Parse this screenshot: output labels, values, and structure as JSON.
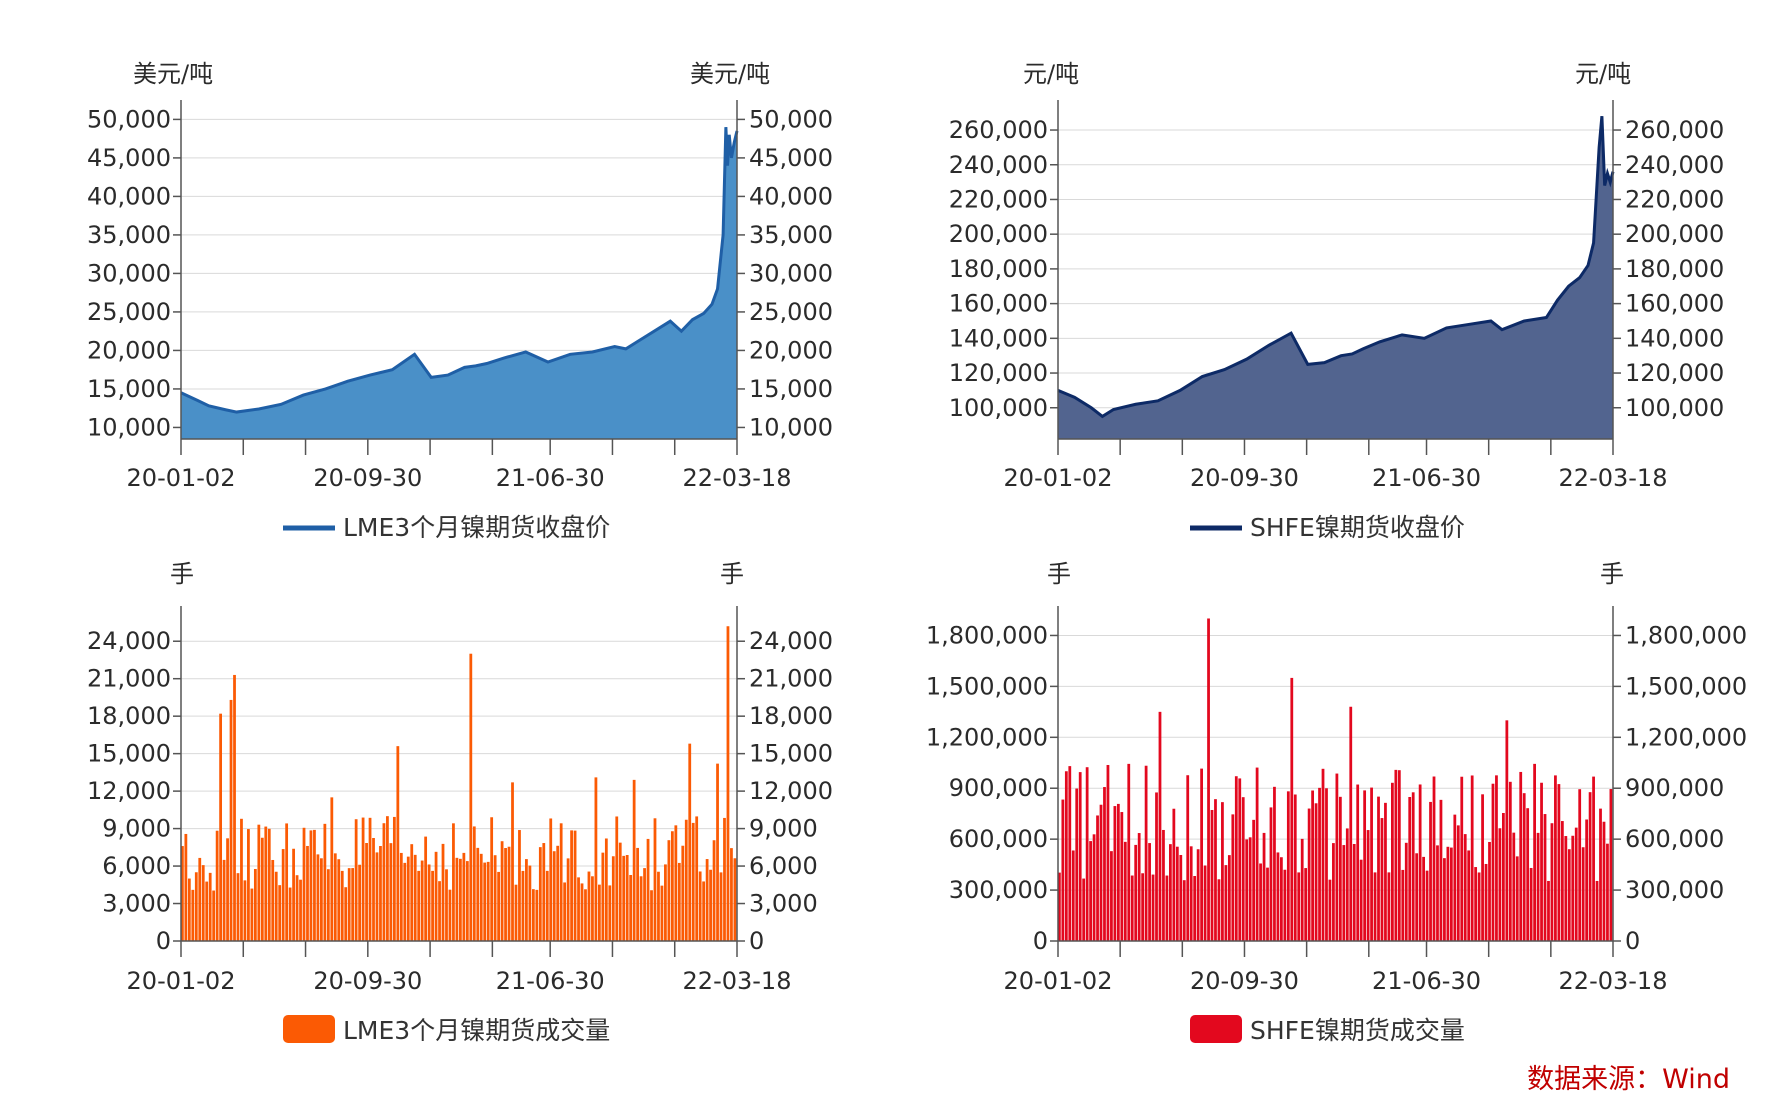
{
  "source_note": "数据来源：Wind",
  "chart_data": [
    {
      "id": "lme-price",
      "type": "area",
      "color": "#1f5fa6",
      "fill": "#4a90c8",
      "unit_left": "美元/吨",
      "unit_right": "美元/吨",
      "legend": "LME3个月镍期货收盘价",
      "legend_style": "line",
      "ylim": [
        8500,
        52000
      ],
      "yticks": [
        10000,
        15000,
        20000,
        25000,
        30000,
        35000,
        40000,
        45000,
        50000
      ],
      "ytick_labels": [
        "10,000",
        "15,000",
        "20,000",
        "25,000",
        "30,000",
        "35,000",
        "40,000",
        "45,000",
        "50,000"
      ],
      "xtick_labels": [
        "20-01-02",
        "20-09-30",
        "21-06-30",
        "22-03-18"
      ],
      "x": [
        0,
        0.03,
        0.05,
        0.08,
        0.1,
        0.14,
        0.18,
        0.22,
        0.26,
        0.3,
        0.34,
        0.38,
        0.42,
        0.45,
        0.48,
        0.51,
        0.53,
        0.55,
        0.58,
        0.62,
        0.66,
        0.7,
        0.74,
        0.78,
        0.8,
        0.84,
        0.88,
        0.9,
        0.92,
        0.94,
        0.955,
        0.965,
        0.975,
        0.98,
        0.983,
        0.986,
        0.99,
        0.995,
        1.0
      ],
      "values": [
        14500,
        13500,
        12800,
        12300,
        12000,
        12400,
        13000,
        14200,
        15000,
        16000,
        16800,
        17500,
        19500,
        16500,
        16800,
        17800,
        18000,
        18300,
        19000,
        19800,
        18500,
        19500,
        19800,
        20500,
        20200,
        22000,
        23800,
        22500,
        24000,
        24800,
        26000,
        28000,
        35000,
        49000,
        44000,
        48000,
        45000,
        47000,
        48500
      ]
    },
    {
      "id": "shfe-price",
      "type": "area",
      "color": "#0d2a66",
      "fill": "#52648f",
      "unit_left": "元/吨",
      "unit_right": "元/吨",
      "legend": "SHFE镍期货收盘价",
      "legend_style": "line",
      "ylim": [
        82000,
        275000
      ],
      "yticks": [
        100000,
        120000,
        140000,
        160000,
        180000,
        200000,
        220000,
        240000,
        260000
      ],
      "ytick_labels": [
        "100,000",
        "120,000",
        "140,000",
        "160,000",
        "180,000",
        "200,000",
        "220,000",
        "240,000",
        "260,000"
      ],
      "xtick_labels": [
        "20-01-02",
        "20-09-30",
        "21-06-30",
        "22-03-18"
      ],
      "x": [
        0,
        0.03,
        0.06,
        0.08,
        0.1,
        0.14,
        0.18,
        0.22,
        0.26,
        0.3,
        0.34,
        0.38,
        0.42,
        0.45,
        0.48,
        0.51,
        0.53,
        0.55,
        0.58,
        0.62,
        0.66,
        0.7,
        0.74,
        0.78,
        0.8,
        0.84,
        0.88,
        0.9,
        0.92,
        0.94,
        0.955,
        0.965,
        0.975,
        0.98,
        0.985,
        0.99,
        0.995,
        1.0
      ],
      "values": [
        110000,
        106000,
        100000,
        95000,
        99000,
        102000,
        104000,
        110000,
        118000,
        122000,
        128000,
        136000,
        143000,
        125000,
        126000,
        130000,
        131000,
        134000,
        138000,
        142000,
        140000,
        146000,
        148000,
        150000,
        145000,
        150000,
        152000,
        162000,
        170000,
        175000,
        182000,
        195000,
        250000,
        268000,
        228000,
        235000,
        230000,
        236000
      ]
    },
    {
      "id": "lme-volume",
      "type": "bar",
      "color": "#fb5a04",
      "unit_left": "手",
      "unit_right": "手",
      "legend": "LME3个月镍期货成交量",
      "legend_style": "box",
      "ylim": [
        0,
        26500
      ],
      "yticks": [
        0,
        3000,
        6000,
        9000,
        12000,
        15000,
        18000,
        21000,
        24000
      ],
      "ytick_labels": [
        "0",
        "3,000",
        "6,000",
        "9,000",
        "12,000",
        "15,000",
        "18,000",
        "21,000",
        "24,000"
      ],
      "xtick_labels": [
        "20-01-02",
        "20-09-30",
        "21-06-30",
        "22-03-18"
      ],
      "bar_count": 160,
      "base_range": [
        4000,
        10000
      ],
      "spikes": [
        [
          0.07,
          18200
        ],
        [
          0.085,
          19300
        ],
        [
          0.095,
          21300
        ],
        [
          0.27,
          11500
        ],
        [
          0.39,
          15600
        ],
        [
          0.52,
          23000
        ],
        [
          0.6,
          12700
        ],
        [
          0.75,
          13100
        ],
        [
          0.82,
          12900
        ],
        [
          0.92,
          15800
        ],
        [
          0.97,
          14200
        ],
        [
          0.985,
          25200
        ]
      ]
    },
    {
      "id": "shfe-volume",
      "type": "bar",
      "color": "#e3081e",
      "unit_left": "手",
      "unit_right": "手",
      "legend": "SHFE镍期货成交量",
      "legend_style": "box",
      "ylim": [
        0,
        1950000
      ],
      "yticks": [
        0,
        300000,
        600000,
        900000,
        1200000,
        1500000,
        1800000
      ],
      "ytick_labels": [
        "0",
        "300,000",
        "600,000",
        "900,000",
        "1,200,000",
        "1,500,000",
        "1,800,000"
      ],
      "xtick_labels": [
        "20-01-02",
        "20-09-30",
        "21-06-30",
        "22-03-18"
      ],
      "bar_count": 160,
      "base_range": [
        350000,
        1050000
      ],
      "spikes": [
        [
          0.01,
          1000000
        ],
        [
          0.18,
          1350000
        ],
        [
          0.27,
          1900000
        ],
        [
          0.42,
          1550000
        ],
        [
          0.53,
          1380000
        ],
        [
          0.81,
          1300000
        ],
        [
          0.93,
          620000
        ]
      ]
    }
  ]
}
